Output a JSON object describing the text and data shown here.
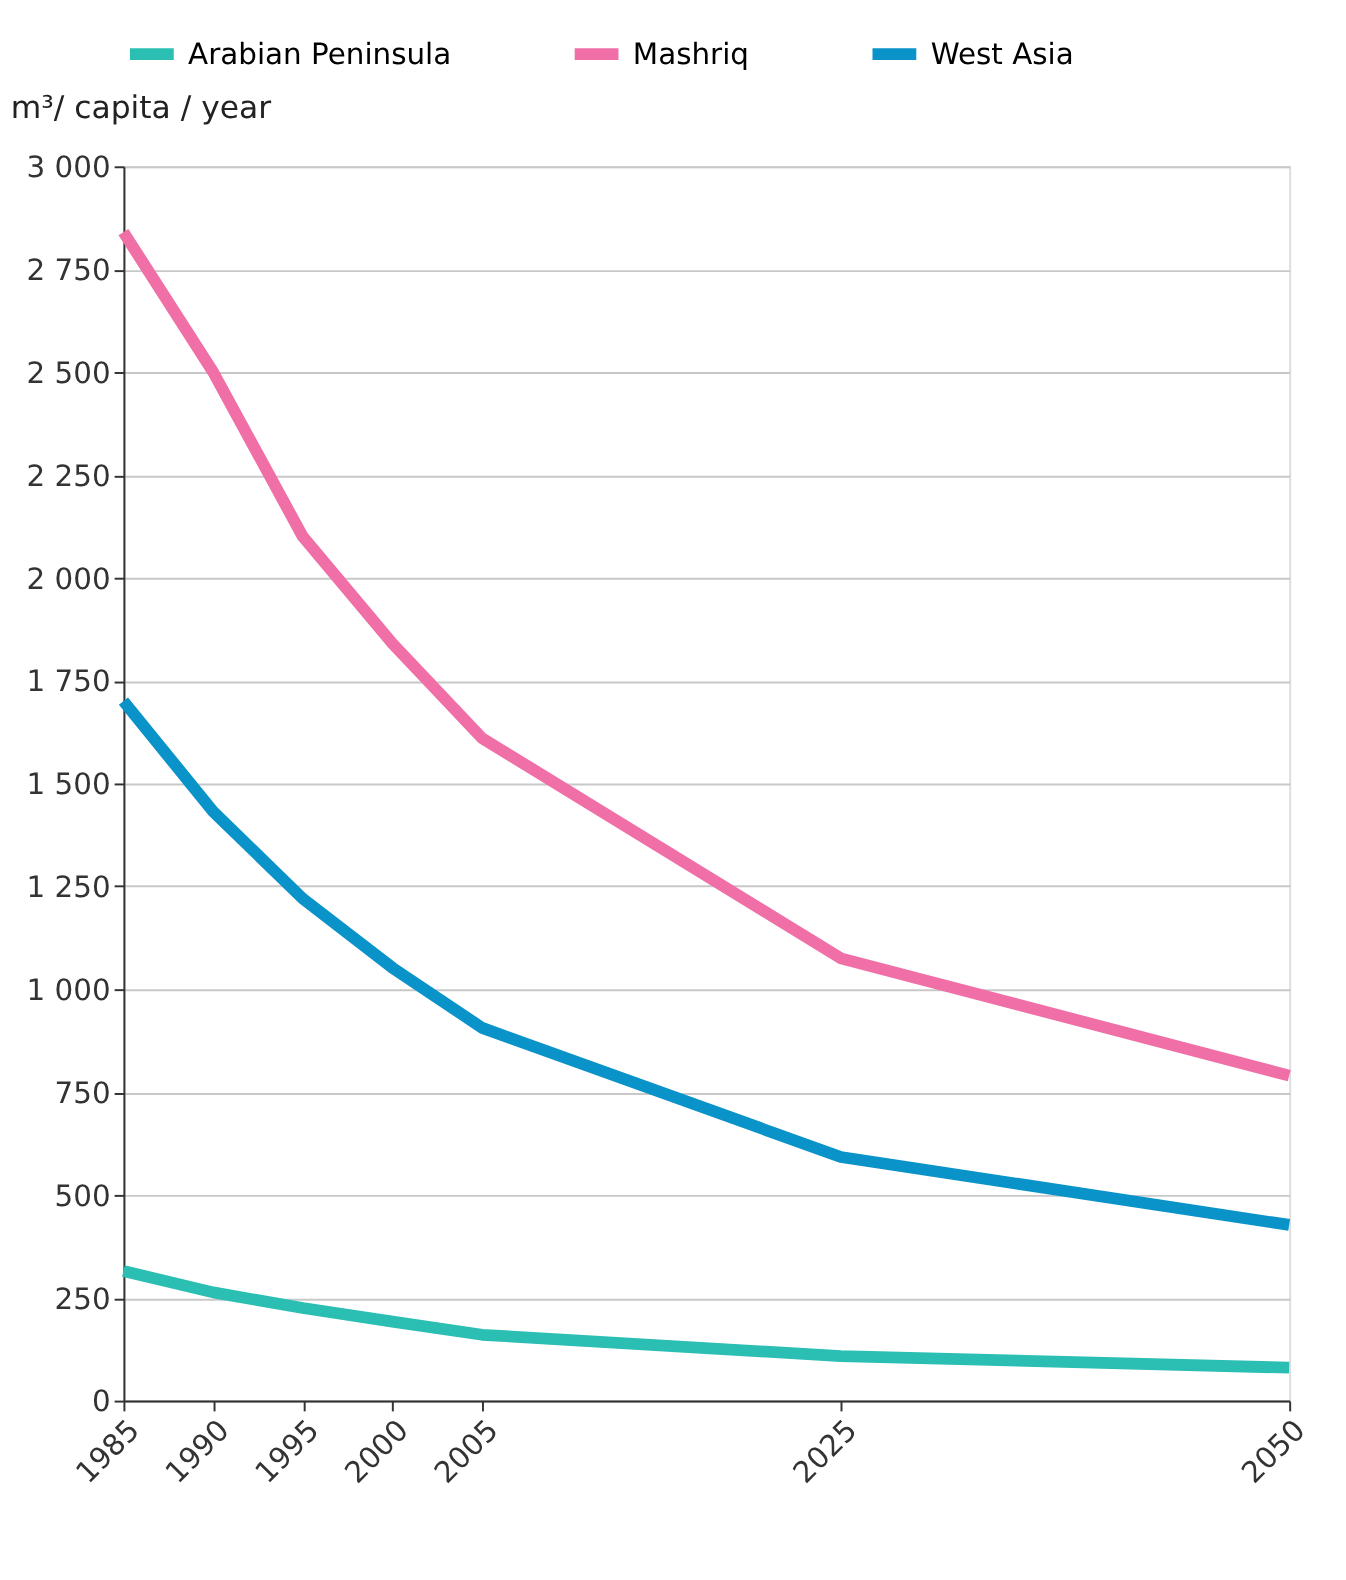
{
  "chart_data": {
    "type": "line",
    "ylabel": "m³/ capita / year",
    "x": [
      1985,
      1990,
      1995,
      2000,
      2005,
      2025,
      2050
    ],
    "series": [
      {
        "name": "Arabian Peninsula",
        "color": "#2bbfb3",
        "values": [
          315,
          263,
          225,
          192,
          160,
          108,
          80
        ]
      },
      {
        "name": "Mashriq",
        "color": "#ef6fa6",
        "values": [
          2840,
          2500,
          2100,
          1840,
          1610,
          1075,
          790
        ]
      },
      {
        "name": "West Asia",
        "color": "#0a93c9",
        "values": [
          1700,
          1432,
          1220,
          1052,
          906,
          592,
          427
        ]
      }
    ],
    "xlim": [
      1985,
      2050
    ],
    "xticks": [
      1985,
      1990,
      1995,
      2000,
      2005,
      2025,
      2050
    ],
    "ylim": [
      0,
      3000
    ],
    "yticks": [
      {
        "value": 0,
        "label": "0"
      },
      {
        "value": 250,
        "label": "250"
      },
      {
        "value": 500,
        "label": "500"
      },
      {
        "value": 750,
        "label": "750"
      },
      {
        "value": 1000,
        "label": "1 000"
      },
      {
        "value": 1250,
        "label": "1 250"
      },
      {
        "value": 1500,
        "label": "1 500"
      },
      {
        "value": 1750,
        "label": "1 750"
      },
      {
        "value": 2000,
        "label": "2 000"
      },
      {
        "value": 2250,
        "label": "2 250"
      },
      {
        "value": 2500,
        "label": "2 500"
      },
      {
        "value": 2750,
        "label": "2 750"
      },
      {
        "value": 3000,
        "label": "3 000"
      }
    ],
    "grid": "y",
    "legend": "top",
    "marker": "none",
    "line_style": "solid"
  }
}
